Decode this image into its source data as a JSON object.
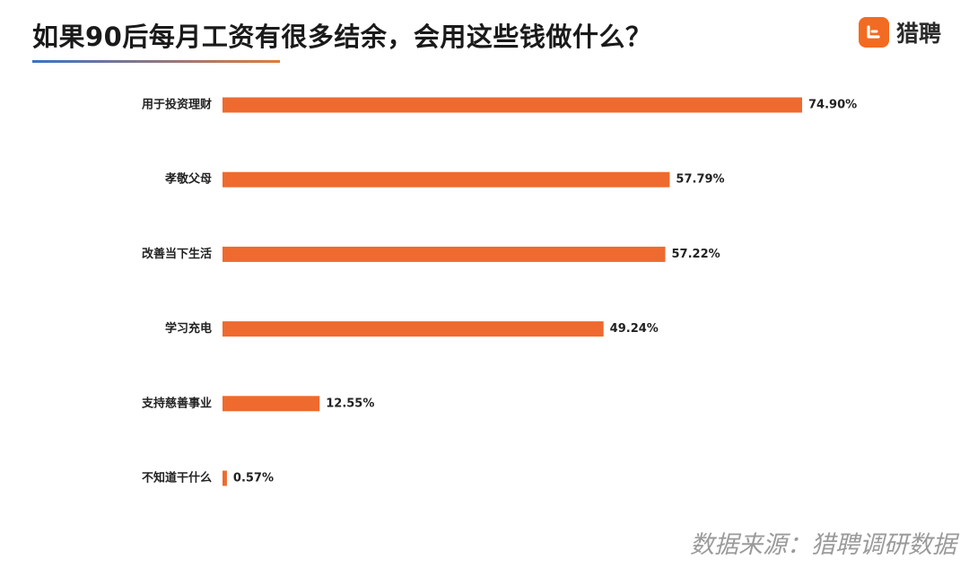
{
  "title": "如果90后每月工资有很多结余，会用这些钱做什么？",
  "brand": {
    "name": "猎聘",
    "icon": "liepin-logo-icon",
    "color": "#f26b22"
  },
  "source": "数据来源：猎聘调研数据",
  "bar_color": "#ee6a2f",
  "chart_data": {
    "type": "bar",
    "orientation": "horizontal",
    "title": "如果90后每月工资有很多结余，会用这些钱做什么？",
    "categories": [
      "用于投资理财",
      "孝敬父母",
      "改善当下生活",
      "学习充电",
      "支持慈善事业",
      "不知道干什么"
    ],
    "values": [
      74.9,
      57.79,
      57.22,
      49.24,
      12.55,
      0.57
    ],
    "value_labels": [
      "74.90%",
      "57.79%",
      "57.22%",
      "49.24%",
      "12.55%",
      "0.57%"
    ],
    "unit": "%",
    "xlim": [
      0,
      100
    ],
    "grid": false,
    "legend": "none"
  }
}
